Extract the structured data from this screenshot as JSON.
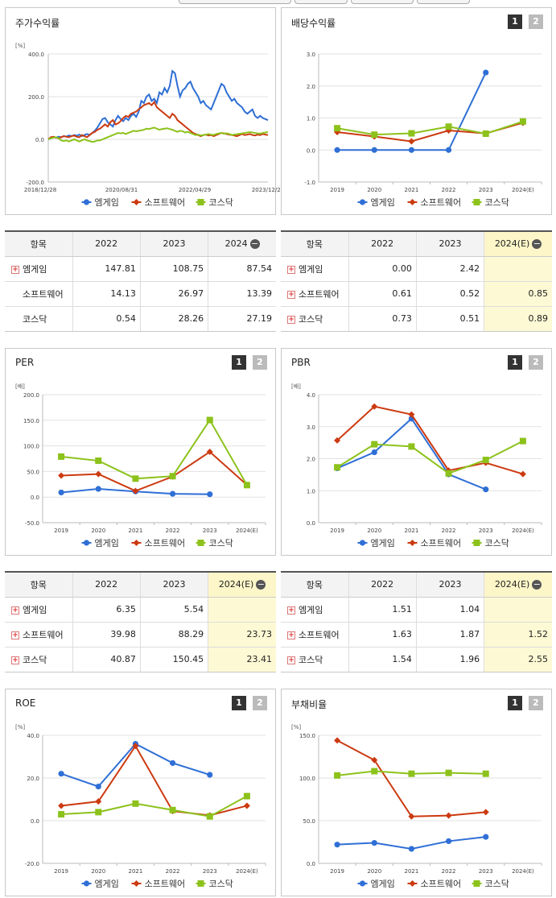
{
  "colors": {
    "mgame": "#2f6fd6",
    "software": "#cc3a10",
    "kosdaq": "#8cc21b"
  },
  "panels": {
    "stock": {
      "title": "주가수익률"
    },
    "dividend": {
      "title": "배당수익률",
      "btn1": "1",
      "btn2": "2"
    },
    "per": {
      "title": "PER",
      "btn1": "1",
      "btn2": "2"
    },
    "pbr": {
      "title": "PBR",
      "btn1": "1",
      "btn2": "2"
    },
    "roe": {
      "title": "ROE",
      "btn1": "1",
      "btn2": "2"
    },
    "debt": {
      "title": "부채비율",
      "btn1": "1",
      "btn2": "2"
    }
  },
  "chart_data": [
    {
      "id": "stock",
      "type": "line",
      "unit": "[%]",
      "ylim": [
        -200,
        400
      ],
      "yticks": [
        "400.0",
        "200.0",
        "0.0",
        "-200.0"
      ],
      "xlabels": [
        "2018/12/28",
        "2020/08/31",
        "2022/04/29",
        "2023/12/28"
      ],
      "series": [
        {
          "name": "엠게임",
          "values": [
            0,
            5,
            10,
            8,
            12,
            10,
            15,
            13,
            18,
            15,
            20,
            17,
            22,
            15,
            20,
            25,
            20,
            30,
            40,
            55,
            75,
            95,
            100,
            80,
            70,
            60,
            90,
            110,
            95,
            85,
            100,
            90,
            110,
            120,
            105,
            130,
            180,
            170,
            200,
            210,
            180,
            190,
            170,
            220,
            210,
            240,
            220,
            250,
            320,
            310,
            250,
            200,
            230,
            240,
            260,
            270,
            240,
            220,
            200,
            170,
            180,
            160,
            150,
            140,
            170,
            200,
            230,
            260,
            250,
            220,
            200,
            180,
            190,
            170,
            160,
            150,
            130,
            120,
            130,
            140,
            110,
            100,
            110,
            100,
            95,
            90
          ]
        },
        {
          "name": "소프트웨어",
          "values": [
            0,
            10,
            12,
            8,
            5,
            10,
            15,
            12,
            10,
            15,
            18,
            12,
            10,
            20,
            15,
            10,
            20,
            30,
            35,
            45,
            50,
            60,
            70,
            60,
            80,
            90,
            70,
            75,
            85,
            100,
            110,
            105,
            120,
            125,
            130,
            140,
            150,
            160,
            165,
            170,
            160,
            175,
            150,
            140,
            130,
            120,
            110,
            100,
            120,
            110,
            90,
            80,
            70,
            60,
            50,
            40,
            30,
            25,
            20,
            15,
            20,
            22,
            18,
            20,
            15,
            20,
            25,
            30,
            28,
            25,
            22,
            20,
            18,
            15,
            20,
            25,
            20,
            22,
            25,
            20,
            18,
            22,
            20,
            25,
            22,
            20
          ]
        },
        {
          "name": "코스닥",
          "values": [
            0,
            5,
            8,
            10,
            5,
            -5,
            -8,
            -5,
            -10,
            -5,
            0,
            -5,
            -10,
            -5,
            0,
            -5,
            -8,
            -12,
            -10,
            -5,
            -5,
            0,
            5,
            10,
            15,
            20,
            25,
            30,
            28,
            30,
            25,
            30,
            35,
            40,
            38,
            40,
            42,
            45,
            50,
            48,
            52,
            55,
            50,
            45,
            48,
            50,
            52,
            48,
            45,
            40,
            35,
            40,
            38,
            32,
            35,
            30,
            25,
            20,
            22,
            18,
            20,
            22,
            25,
            22,
            20,
            25,
            28,
            30,
            26,
            28,
            25,
            20,
            22,
            24,
            26,
            28,
            30,
            32,
            34,
            32,
            30,
            28,
            27,
            30,
            32,
            34
          ]
        }
      ]
    },
    {
      "id": "dividend",
      "type": "line",
      "unit": "",
      "ylim": [
        -1,
        3
      ],
      "yticks": [
        "3.0",
        "2.0",
        "1.0",
        "0.0",
        "-1.0"
      ],
      "categories": [
        "2019",
        "2020",
        "2021",
        "2022",
        "2023",
        "2024(E)"
      ],
      "series": [
        {
          "name": "엠게임",
          "values": [
            0.0,
            0.0,
            0.0,
            0.0,
            2.42,
            null
          ]
        },
        {
          "name": "소프트웨어",
          "values": [
            0.56,
            0.42,
            0.27,
            0.61,
            0.52,
            0.85
          ]
        },
        {
          "name": "코스닥",
          "values": [
            0.68,
            0.48,
            0.52,
            0.73,
            0.51,
            0.89
          ]
        }
      ]
    },
    {
      "id": "per",
      "type": "line",
      "unit": "[배]",
      "ylim": [
        -50,
        200
      ],
      "yticks": [
        "200.0",
        "150.0",
        "100.0",
        "50.0",
        "0.0",
        "-50.0"
      ],
      "categories": [
        "2019",
        "2020",
        "2021",
        "2022",
        "2023",
        "2024(E)"
      ],
      "series": [
        {
          "name": "엠게임",
          "values": [
            9,
            16,
            11,
            6.35,
            5.54,
            null
          ]
        },
        {
          "name": "소프트웨어",
          "values": [
            42,
            45,
            12,
            39.98,
            88.29,
            23.73
          ]
        },
        {
          "name": "코스닥",
          "values": [
            79,
            71,
            36,
            40.87,
            150.45,
            23.41
          ]
        }
      ]
    },
    {
      "id": "pbr",
      "type": "line",
      "unit": "[배]",
      "ylim": [
        0,
        4
      ],
      "yticks": [
        "4.0",
        "3.0",
        "2.0",
        "1.0",
        "0.0"
      ],
      "categories": [
        "2019",
        "2020",
        "2021",
        "2022",
        "2023",
        "2024(E)"
      ],
      "series": [
        {
          "name": "엠게임",
          "values": [
            1.7,
            2.2,
            3.25,
            1.51,
            1.04,
            null
          ]
        },
        {
          "name": "소프트웨어",
          "values": [
            2.57,
            3.63,
            3.38,
            1.63,
            1.87,
            1.52
          ]
        },
        {
          "name": "코스닥",
          "values": [
            1.73,
            2.45,
            2.38,
            1.54,
            1.96,
            2.55
          ]
        }
      ]
    },
    {
      "id": "roe",
      "type": "line",
      "unit": "[%]",
      "ylim": [
        -20,
        40
      ],
      "yticks": [
        "40.0",
        "20.0",
        "0.0",
        "-20.0"
      ],
      "categories": [
        "2019",
        "2020",
        "2021",
        "2022",
        "2023",
        "2024(E)"
      ],
      "series": [
        {
          "name": "엠게임",
          "values": [
            22,
            16,
            36,
            27,
            21.5,
            null
          ]
        },
        {
          "name": "소프트웨어",
          "values": [
            7,
            9,
            35,
            4.5,
            2.5,
            7
          ]
        },
        {
          "name": "코스닥",
          "values": [
            3,
            4,
            8,
            5,
            2,
            11.5
          ]
        }
      ]
    },
    {
      "id": "debt",
      "type": "line",
      "unit": "[%]",
      "ylim": [
        0,
        150
      ],
      "yticks": [
        "150.0",
        "100.0",
        "50.0",
        "0.0"
      ],
      "categories": [
        "2019",
        "2020",
        "2021",
        "2022",
        "2023",
        "2024(E)"
      ],
      "series": [
        {
          "name": "엠게임",
          "values": [
            22,
            24,
            17,
            26,
            31,
            null
          ]
        },
        {
          "name": "소프트웨어",
          "values": [
            144,
            121,
            55,
            56,
            60,
            null
          ]
        },
        {
          "name": "코스닥",
          "values": [
            103,
            108,
            105,
            106,
            105,
            null
          ]
        }
      ]
    }
  ],
  "legend": [
    "엠게임",
    "소프트웨어",
    "코스닥"
  ],
  "tables": {
    "stock": {
      "header": [
        "항목",
        "2022",
        "2023",
        "2024"
      ],
      "minus": "−",
      "hl": false,
      "rows": [
        {
          "label": "엠게임",
          "plus": true,
          "v": [
            "147.81",
            "108.75",
            "87.54"
          ]
        },
        {
          "label": "소프트웨어",
          "plus": false,
          "v": [
            "14.13",
            "26.97",
            "13.39"
          ]
        },
        {
          "label": "코스닥",
          "plus": false,
          "v": [
            "0.54",
            "28.26",
            "27.19"
          ]
        }
      ]
    },
    "dividend": {
      "header": [
        "항목",
        "2022",
        "2023",
        "2024(E)"
      ],
      "minus": "−",
      "hl": true,
      "rows": [
        {
          "label": "엠게임",
          "plus": true,
          "v": [
            "0.00",
            "2.42",
            ""
          ]
        },
        {
          "label": "소프트웨어",
          "plus": true,
          "v": [
            "0.61",
            "0.52",
            "0.85"
          ]
        },
        {
          "label": "코스닥",
          "plus": true,
          "v": [
            "0.73",
            "0.51",
            "0.89"
          ]
        }
      ]
    },
    "per": {
      "header": [
        "항목",
        "2022",
        "2023",
        "2024(E)"
      ],
      "minus": "−",
      "hl": true,
      "rows": [
        {
          "label": "엠게임",
          "plus": true,
          "v": [
            "6.35",
            "5.54",
            ""
          ]
        },
        {
          "label": "소프트웨어",
          "plus": true,
          "v": [
            "39.98",
            "88.29",
            "23.73"
          ]
        },
        {
          "label": "코스닥",
          "plus": true,
          "v": [
            "40.87",
            "150.45",
            "23.41"
          ]
        }
      ]
    },
    "pbr": {
      "header": [
        "항목",
        "2022",
        "2023",
        "2024(E)"
      ],
      "minus": "−",
      "hl": true,
      "rows": [
        {
          "label": "엠게임",
          "plus": true,
          "v": [
            "1.51",
            "1.04",
            ""
          ]
        },
        {
          "label": "소프트웨어",
          "plus": true,
          "v": [
            "1.63",
            "1.87",
            "1.52"
          ]
        },
        {
          "label": "코스닥",
          "plus": true,
          "v": [
            "1.54",
            "1.96",
            "2.55"
          ]
        }
      ]
    }
  }
}
